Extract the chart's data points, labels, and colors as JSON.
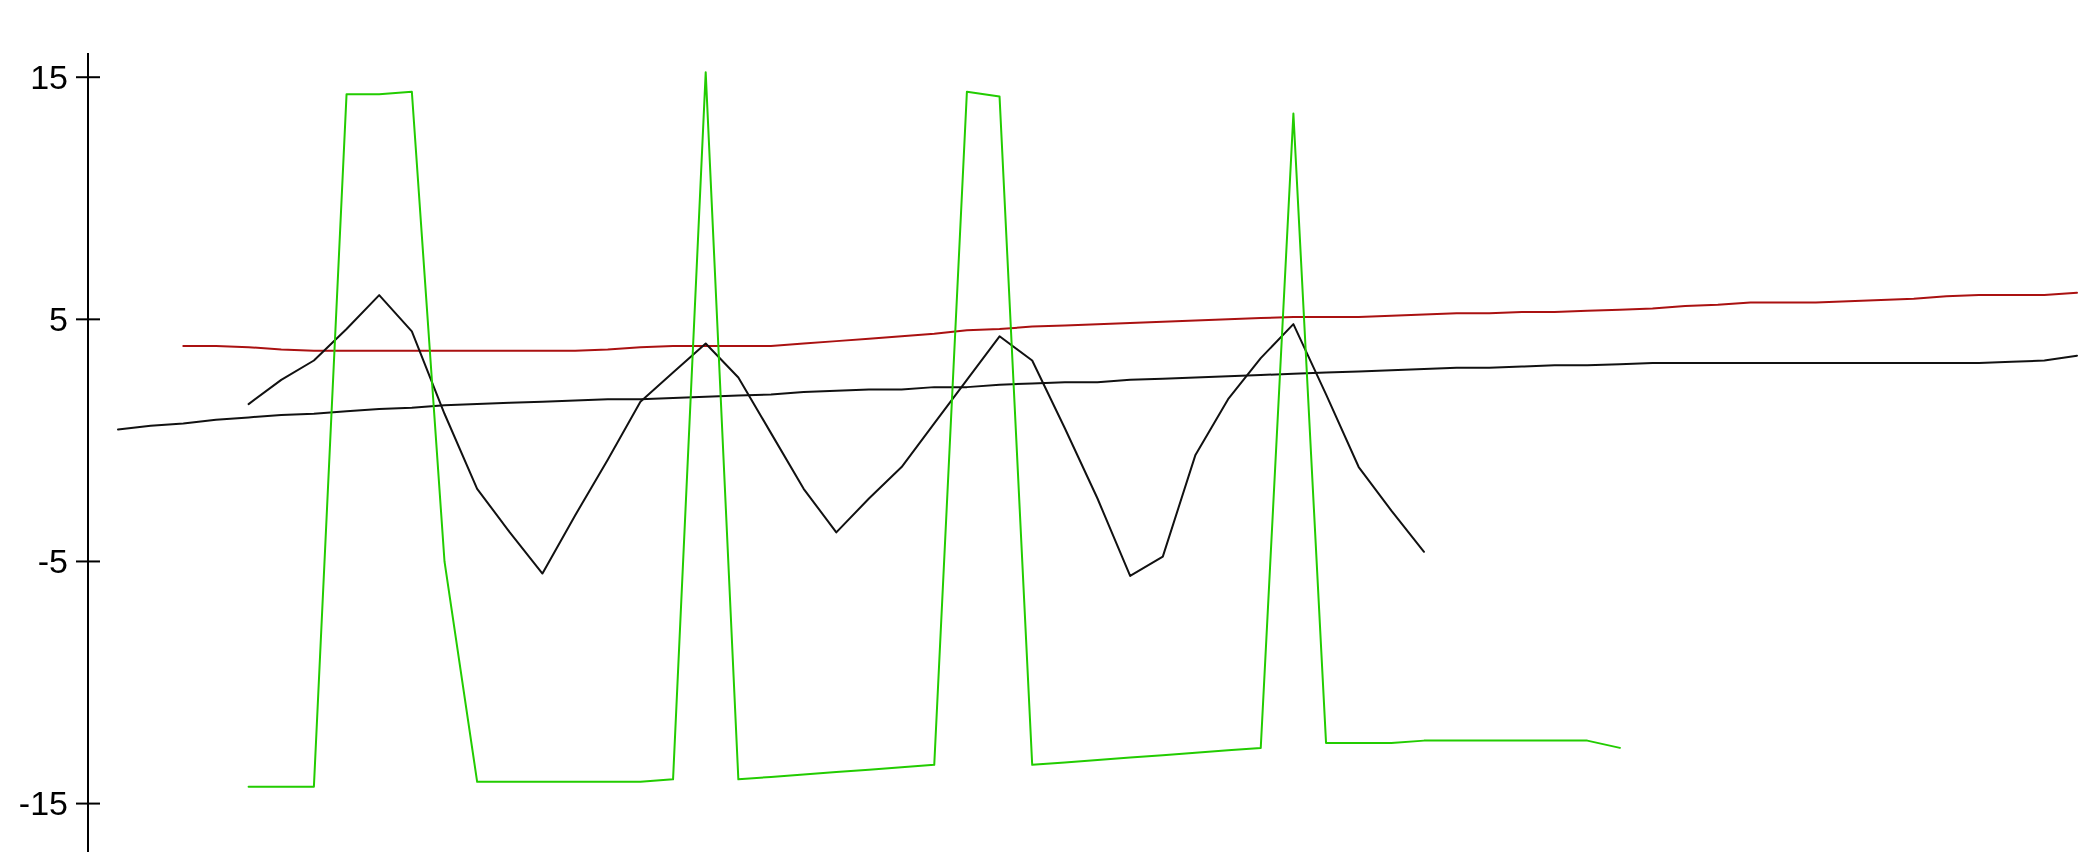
{
  "chart_data": {
    "type": "line",
    "categories": [
      null,
      null,
      null,
      null,
      null,
      null,
      null,
      null,
      null,
      null,
      null,
      null,
      null,
      null,
      null,
      null,
      null,
      null,
      null,
      null,
      null,
      null,
      null,
      null,
      null,
      null,
      null,
      null,
      null,
      null,
      null,
      null,
      null,
      null,
      null,
      null,
      null,
      null,
      null,
      null,
      null,
      null,
      null,
      null,
      null,
      null,
      null,
      null,
      null,
      null,
      null,
      null,
      null,
      null,
      null,
      null,
      null,
      null,
      null,
      null,
      null
    ],
    "ylim": [
      -17,
      16
    ],
    "yticks": [
      15,
      5,
      -5,
      -15
    ],
    "series": [
      {
        "color": "#111111",
        "values": [
          0.45,
          0.6,
          0.7,
          0.85,
          0.95,
          1.05,
          1.1,
          1.2,
          1.3,
          1.35,
          1.45,
          1.5,
          1.55,
          1.6,
          1.65,
          1.7,
          1.7,
          1.75,
          1.8,
          1.85,
          1.9,
          2.0,
          2.05,
          2.1,
          2.1,
          2.2,
          2.2,
          2.3,
          2.35,
          2.4,
          2.4,
          2.5,
          2.55,
          2.6,
          2.65,
          2.7,
          2.75,
          2.8,
          2.85,
          2.9,
          2.95,
          3.0,
          3.0,
          3.05,
          3.1,
          3.1,
          3.15,
          3.2,
          3.2,
          3.2,
          3.2,
          3.2,
          3.2,
          3.2,
          3.2,
          3.2,
          3.2,
          3.2,
          3.25,
          3.3,
          3.5
        ]
      },
      {
        "color": "#aa1111",
        "values": [
          null,
          null,
          3.9,
          3.9,
          3.85,
          3.75,
          3.7,
          3.7,
          3.7,
          3.7,
          3.7,
          3.7,
          3.7,
          3.7,
          3.7,
          3.75,
          3.85,
          3.9,
          3.9,
          3.9,
          3.9,
          4.0,
          4.1,
          4.2,
          4.3,
          4.4,
          4.55,
          4.6,
          4.7,
          4.75,
          4.8,
          4.85,
          4.9,
          4.95,
          5.0,
          5.05,
          5.1,
          5.1,
          5.1,
          5.15,
          5.2,
          5.25,
          5.25,
          5.3,
          5.3,
          5.35,
          5.4,
          5.45,
          5.55,
          5.6,
          5.7,
          5.7,
          5.7,
          5.75,
          5.8,
          5.85,
          5.95,
          6.0,
          6.0,
          6.0,
          6.1
        ]
      },
      {
        "color": "#111111",
        "values": [
          null,
          null,
          null,
          null,
          1.5,
          2.5,
          3.3,
          4.6,
          6.0,
          4.5,
          1.1,
          -2.0,
          -3.8,
          -5.5,
          -3.1,
          -0.8,
          1.6,
          2.8,
          4.0,
          2.6,
          0.3,
          -2.0,
          -3.8,
          -2.4,
          -1.1,
          0.7,
          2.5,
          4.3,
          3.3,
          0.5,
          -2.4,
          -5.6,
          -4.8,
          -0.6,
          1.7,
          3.4,
          4.8,
          1.9,
          -1.1,
          -2.9,
          -4.6,
          null,
          null,
          null,
          null,
          null,
          null,
          null,
          null,
          null,
          null,
          null,
          null,
          null,
          null,
          null,
          null,
          null,
          null,
          null,
          null
        ]
      },
      {
        "color": "#22cc00",
        "values": [
          null,
          null,
          null,
          null,
          -14.3,
          -14.3,
          -14.3,
          14.3,
          14.3,
          14.4,
          -5,
          -14.1,
          -14.1,
          -14.1,
          -14.1,
          -14.1,
          -14.1,
          -14.0,
          15.2,
          -14.0,
          -13.9,
          -13.8,
          -13.7,
          -13.6,
          -13.5,
          -13.4,
          14.4,
          14.2,
          -13.4,
          -13.3,
          -13.2,
          -13.1,
          -13.0,
          -12.9,
          -12.8,
          -12.7,
          13.5,
          -12.5,
          -12.5,
          -12.5,
          -12.4,
          -12.4,
          -12.4,
          -12.4,
          -12.4,
          -12.4,
          -12.7,
          null,
          null,
          null,
          null,
          null,
          null,
          null,
          null,
          null,
          null,
          null,
          null,
          null,
          null
        ]
      }
    ]
  }
}
